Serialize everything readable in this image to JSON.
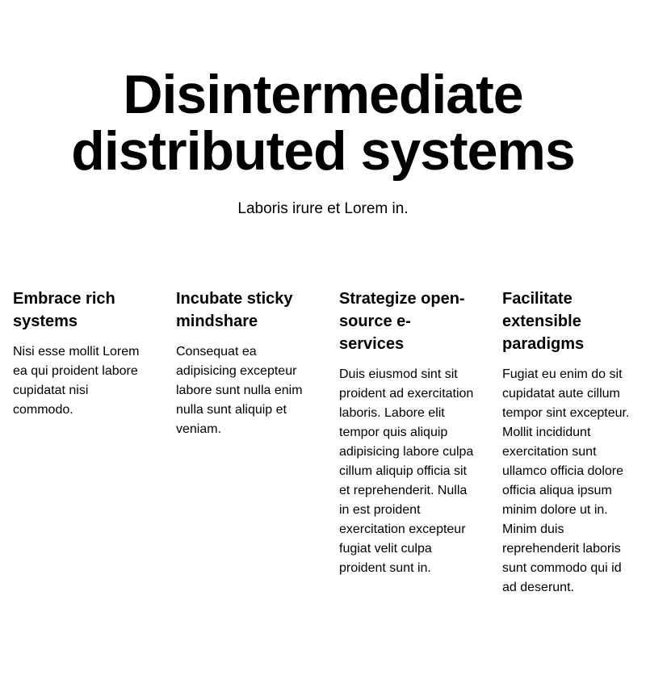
{
  "hero": {
    "title": "Disintermediate distributed systems",
    "subtitle": "Laboris irure et Lorem in."
  },
  "features": [
    {
      "title": "Embrace rich systems",
      "body": "Nisi esse mollit Lorem ea qui proident labore cupidatat nisi commodo."
    },
    {
      "title": "Incubate sticky mindshare",
      "body": "Consequat ea adipisicing excepteur labore sunt nulla enim nulla sunt aliquip et veniam."
    },
    {
      "title": "Strategize open-source e-services",
      "body": "Duis eiusmod sint sit proident ad exercitation laboris. Labore elit tempor quis aliquip adipisicing labore culpa cillum aliquip officia sit et reprehenderit. Nulla in est proident exercitation excepteur fugiat velit culpa proident sunt in."
    },
    {
      "title": "Facilitate extensible paradigms",
      "body": "Fugiat eu enim do sit cupidatat aute cillum tempor sint excepteur. Mollit incididunt exercitation sunt ullamco officia dolore officia aliqua ipsum minim dolore ut in. Minim duis reprehenderit laboris sunt commodo qui id ad deserunt."
    }
  ]
}
